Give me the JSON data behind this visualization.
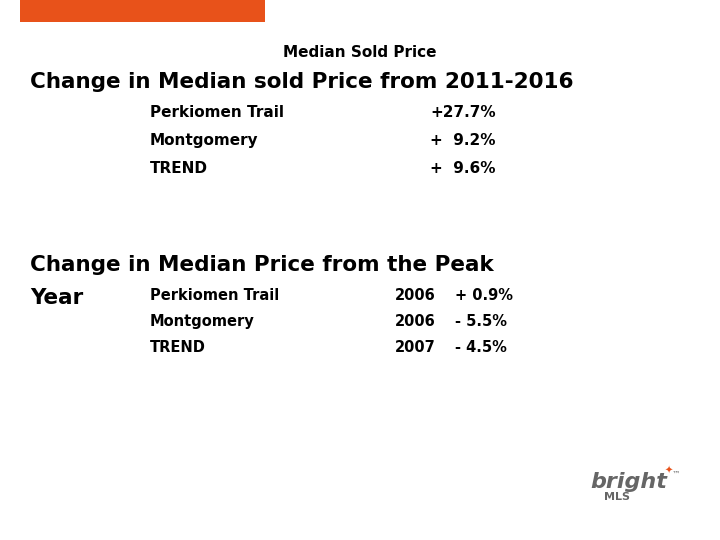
{
  "title": "Median Sold Price",
  "section1_heading": "Change in Median sold Price from 2011-2016",
  "section1_rows": [
    {
      "label": "Perkiomen Trail",
      "value": "+27.7%"
    },
    {
      "label": "Montgomery",
      "value": "+  9.2%"
    },
    {
      "label": "TREND",
      "value": "+  9.6%"
    }
  ],
  "section2_heading1": "Change in Median Price from the Peak",
  "section2_heading2": "Year",
  "section2_rows": [
    {
      "label": "Perkiomen Trail",
      "year": "2006",
      "value": "+ 0.9%"
    },
    {
      "label": "Montgomery",
      "year": "2006",
      "value": "- 5.5%"
    },
    {
      "label": "TREND",
      "year": "2007",
      "value": "- 4.5%"
    }
  ],
  "orange_color": "#E8521A",
  "bg_color": "#FFFFFF",
  "text_color": "#000000",
  "logo_color": "#666666"
}
